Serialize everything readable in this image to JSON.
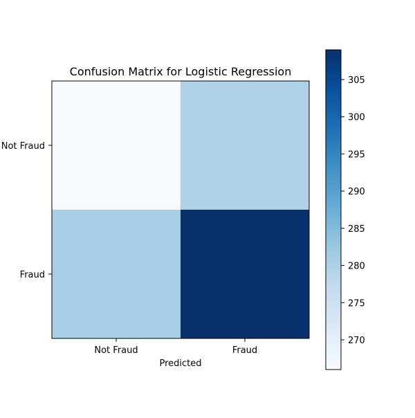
{
  "chart_data": {
    "type": "heatmap",
    "title": "Confusion Matrix for Logistic Regression",
    "xlabel": "Predicted",
    "ylabel": "",
    "x_categories": [
      "Not Fraud",
      "Fraud"
    ],
    "y_categories": [
      "Not Fraud",
      "Fraud"
    ],
    "values": [
      [
        266,
        280
      ],
      [
        281,
        309
      ]
    ],
    "colormap": "Blues",
    "colorbar": {
      "range": [
        266,
        309
      ],
      "ticks": [
        270,
        275,
        280,
        285,
        290,
        295,
        300,
        305
      ],
      "tick_labels": [
        "270",
        "275",
        "280",
        "285",
        "290",
        "295",
        "300",
        "305"
      ]
    },
    "cell_labels_shown": false,
    "grid": false
  }
}
